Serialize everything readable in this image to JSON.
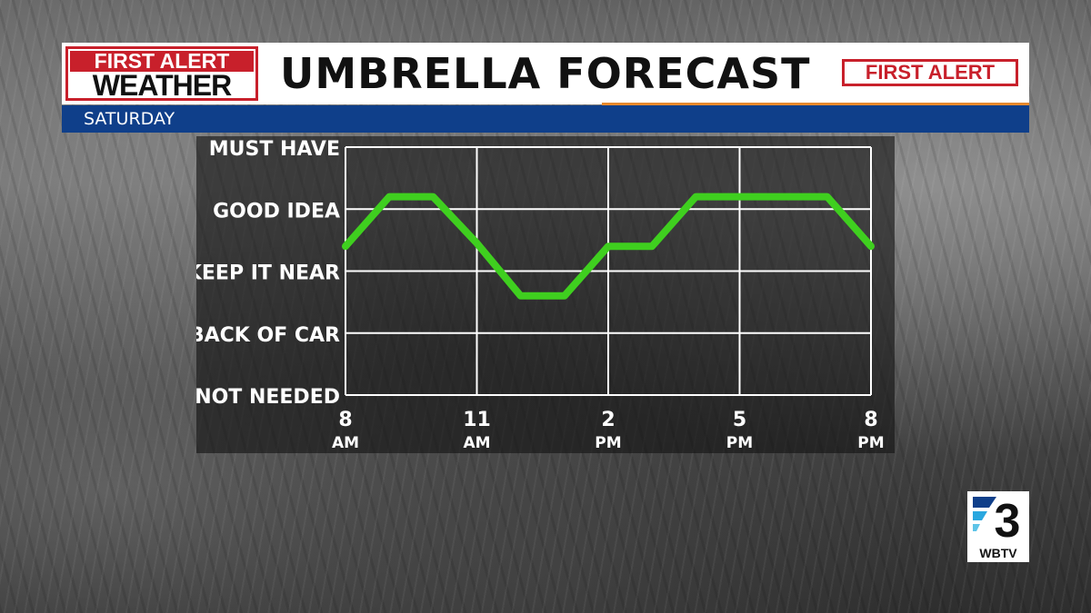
{
  "header": {
    "logo_line1": "FIRST ALERT",
    "logo_line2": "WEATHER",
    "title": "UMBRELLA FORECAST",
    "badge": "FIRST ALERT"
  },
  "subheader": {
    "day": "SATURDAY"
  },
  "station": {
    "number": "3",
    "call_letters": "WBTV"
  },
  "colors": {
    "brand_red": "#c8202b",
    "bar_blue": "#0f3f8a",
    "accent_orange": "#e8892b",
    "line_green": "#3fcf1f"
  },
  "chart_data": {
    "type": "line",
    "title": "",
    "xlabel": "",
    "ylabel": "",
    "y_categories": [
      "NOT NEEDED",
      "BACK OF CAR",
      "KEEP IT NEAR",
      "GOOD IDEA",
      "MUST HAVE"
    ],
    "x_ticks": [
      {
        "hour": 8,
        "line1": "8",
        "line2": "AM"
      },
      {
        "hour": 11,
        "line1": "11",
        "line2": "AM"
      },
      {
        "hour": 14,
        "line1": "2",
        "line2": "PM"
      },
      {
        "hour": 17,
        "line1": "5",
        "line2": "PM"
      },
      {
        "hour": 20,
        "line1": "8",
        "line2": "PM"
      }
    ],
    "xlim": [
      8,
      20
    ],
    "ylim": [
      0,
      4
    ],
    "grid": true,
    "series": [
      {
        "x": [
          8,
          9,
          10,
          11,
          12,
          13,
          14,
          15,
          16,
          17,
          18,
          19,
          20
        ],
        "y": [
          2.4,
          3.2,
          3.2,
          2.45,
          1.6,
          1.6,
          2.4,
          2.4,
          3.2,
          3.2,
          3.2,
          3.2,
          2.4
        ]
      }
    ]
  }
}
